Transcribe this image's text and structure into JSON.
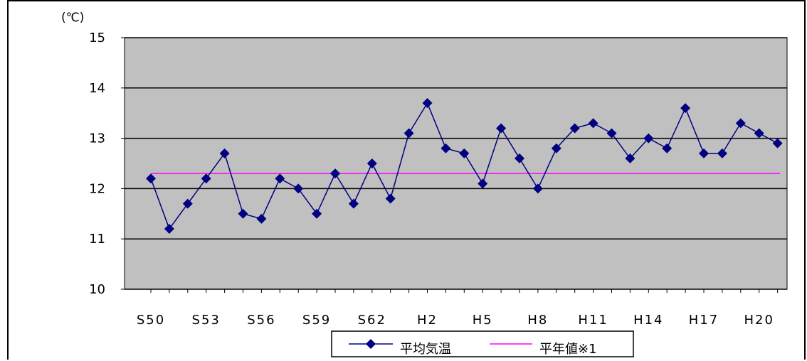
{
  "chart_data": {
    "type": "line",
    "unit_label": "(℃)",
    "ylim": [
      10,
      15
    ],
    "yticks": [
      10,
      11,
      12,
      13,
      14,
      15
    ],
    "x_tick_labels": [
      "S50",
      "S53",
      "S56",
      "S59",
      "S62",
      "H2",
      "H5",
      "H8",
      "H11",
      "H14",
      "H17",
      "H20"
    ],
    "x_tick_every": 3,
    "grid": true,
    "legend_position": "bottom",
    "series": [
      {
        "name": "平均気温",
        "color": "#000080",
        "marker": "diamond",
        "values": [
          12.2,
          11.2,
          11.7,
          12.2,
          12.7,
          11.5,
          11.4,
          12.2,
          12.0,
          11.5,
          12.3,
          11.7,
          12.5,
          11.8,
          13.1,
          13.7,
          12.8,
          12.7,
          12.1,
          13.2,
          12.6,
          12.0,
          12.8,
          13.2,
          13.3,
          13.1,
          12.6,
          13.0,
          12.8,
          13.6,
          12.7,
          12.7,
          13.3,
          13.1,
          12.9
        ]
      },
      {
        "name": "平年値※1",
        "color": "#ff00ff",
        "values_constant": 12.3
      }
    ]
  },
  "colors": {
    "plot_background": "#c0c0c0",
    "gridline": "#000000"
  }
}
